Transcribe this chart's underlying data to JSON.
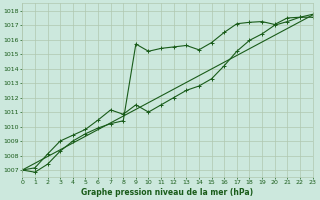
{
  "bg_color": "#cce8dd",
  "grid_color": "#b0c8b0",
  "line_color": "#1a5c1a",
  "title": "Graphe pression niveau de la mer (hPa)",
  "xlim": [
    0,
    23
  ],
  "ylim": [
    1006.5,
    1018.5
  ],
  "xticks": [
    0,
    1,
    2,
    3,
    4,
    5,
    6,
    7,
    8,
    9,
    10,
    11,
    12,
    13,
    14,
    15,
    16,
    17,
    18,
    19,
    20,
    21,
    22,
    23
  ],
  "yticks": [
    1007,
    1008,
    1009,
    1010,
    1011,
    1012,
    1013,
    1014,
    1015,
    1016,
    1017,
    1018
  ],
  "series1_x": [
    0,
    1,
    2,
    3,
    4,
    5,
    6,
    7,
    8,
    9,
    10,
    11,
    12,
    13,
    14,
    15,
    16,
    17,
    18,
    19,
    20,
    21,
    22,
    23
  ],
  "series1_y": [
    1007.0,
    1006.85,
    1007.4,
    1008.3,
    1009.0,
    1009.5,
    1009.9,
    1010.2,
    1010.4,
    1015.7,
    1015.2,
    1015.4,
    1015.5,
    1015.6,
    1015.3,
    1015.8,
    1016.5,
    1017.1,
    1017.2,
    1017.25,
    1017.05,
    1017.5,
    1017.55,
    1017.55
  ],
  "series2_x": [
    0,
    1,
    2,
    3,
    4,
    5,
    6,
    7,
    8,
    9,
    10,
    11,
    12,
    13,
    14,
    15,
    16,
    17,
    18,
    19,
    20,
    21,
    22,
    23
  ],
  "series2_y": [
    1007.0,
    1007.15,
    1008.1,
    1009.0,
    1009.4,
    1009.8,
    1010.45,
    1011.15,
    1010.85,
    1011.5,
    1011.0,
    1011.5,
    1012.0,
    1012.5,
    1012.8,
    1013.3,
    1014.2,
    1015.2,
    1015.95,
    1016.4,
    1017.0,
    1017.25,
    1017.55,
    1017.75
  ],
  "series3_x": [
    0,
    23
  ],
  "series3_y": [
    1007.0,
    1017.7
  ]
}
